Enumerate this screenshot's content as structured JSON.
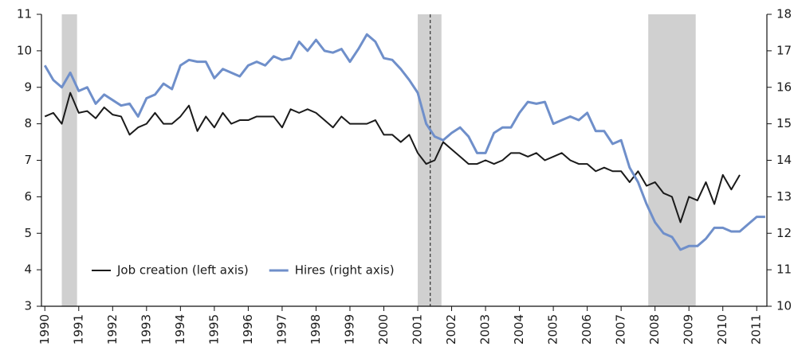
{
  "chart_data": {
    "type": "line",
    "x": [
      1990,
      1990.25,
      1990.5,
      1990.75,
      1991,
      1991.25,
      1991.5,
      1991.75,
      1992,
      1992.25,
      1992.5,
      1992.75,
      1993,
      1993.25,
      1993.5,
      1993.75,
      1994,
      1994.25,
      1994.5,
      1994.75,
      1995,
      1995.25,
      1995.5,
      1995.75,
      1996,
      1996.25,
      1996.5,
      1996.75,
      1997,
      1997.25,
      1997.5,
      1997.75,
      1998,
      1998.25,
      1998.5,
      1998.75,
      1999,
      1999.25,
      1999.5,
      1999.75,
      2000,
      2000.25,
      2000.5,
      2000.75,
      2001,
      2001.25,
      2001.5,
      2001.75,
      2002,
      2002.25,
      2002.5,
      2002.75,
      2003,
      2003.25,
      2003.5,
      2003.75,
      2004,
      2004.25,
      2004.5,
      2004.75,
      2005,
      2005.25,
      2005.5,
      2005.75,
      2006,
      2006.25,
      2006.5,
      2006.75,
      2007,
      2007.25,
      2007.5,
      2007.75,
      2008,
      2008.25,
      2008.5,
      2008.75,
      2009,
      2009.25,
      2009.5,
      2009.75,
      2010,
      2010.25,
      2010.5,
      2010.75,
      2011,
      2011.25
    ],
    "series": [
      {
        "name": "Job creation (left axis)",
        "color": "#1a1a1a",
        "axis": "y",
        "values": [
          8.2,
          8.3,
          8.0,
          8.85,
          8.3,
          8.35,
          8.15,
          8.45,
          8.25,
          8.2,
          7.7,
          7.9,
          8.0,
          8.3,
          8.0,
          8.0,
          8.2,
          8.5,
          7.8,
          8.2,
          7.9,
          8.3,
          8.0,
          8.1,
          8.1,
          8.2,
          8.2,
          8.2,
          7.9,
          8.4,
          8.3,
          8.4,
          8.3,
          8.1,
          7.9,
          8.2,
          8.0,
          8.0,
          8.0,
          8.1,
          7.7,
          7.7,
          7.5,
          7.7,
          7.2,
          6.9,
          7.0,
          7.5,
          7.3,
          7.1,
          6.9,
          6.9,
          7.0,
          6.9,
          7.0,
          7.2,
          7.2,
          7.1,
          7.2,
          7.0,
          7.1,
          7.2,
          7.0,
          6.9,
          6.9,
          6.7,
          6.8,
          6.7,
          6.7,
          6.4,
          6.7,
          6.3,
          6.4,
          6.1,
          6.0,
          5.3,
          6.0,
          5.9,
          6.4,
          5.8,
          6.6,
          6.2,
          6.6,
          null,
          null,
          null
        ]
      },
      {
        "name": "Hires (right axis)",
        "color": "#6f8fca",
        "axis": "y2",
        "values": [
          16.6,
          16.2,
          16.0,
          16.4,
          15.9,
          16.0,
          15.55,
          15.8,
          15.65,
          15.5,
          15.55,
          15.2,
          15.7,
          15.8,
          16.1,
          15.95,
          16.6,
          16.75,
          16.7,
          16.7,
          16.25,
          16.5,
          16.4,
          16.3,
          16.6,
          16.7,
          16.6,
          16.85,
          16.75,
          16.8,
          17.25,
          17.0,
          17.3,
          17.0,
          16.95,
          17.05,
          16.7,
          17.05,
          17.45,
          17.25,
          16.8,
          16.75,
          16.5,
          16.2,
          15.85,
          15.0,
          14.65,
          14.55,
          14.75,
          14.9,
          14.65,
          14.2,
          14.2,
          14.75,
          14.9,
          14.9,
          15.3,
          15.6,
          15.55,
          15.6,
          15.0,
          15.1,
          15.2,
          15.1,
          15.3,
          14.8,
          14.8,
          14.45,
          14.55,
          13.8,
          13.4,
          12.8,
          12.3,
          12.0,
          11.9,
          11.55,
          11.65,
          11.65,
          11.85,
          12.15,
          12.15,
          12.05,
          12.05,
          12.25,
          12.45,
          12.45
        ]
      }
    ],
    "xlim": [
      1989.9,
      2011.3
    ],
    "xticks": [
      1990,
      1991,
      1992,
      1993,
      1994,
      1995,
      1996,
      1997,
      1998,
      1999,
      2000,
      2001,
      2002,
      2003,
      2004,
      2005,
      2006,
      2007,
      2008,
      2009,
      2010,
      2011
    ],
    "ylim": [
      3,
      11
    ],
    "yticks": [
      3,
      4,
      5,
      6,
      7,
      8,
      9,
      10,
      11
    ],
    "y2lim": [
      10,
      18
    ],
    "y2ticks": [
      10,
      11,
      12,
      13,
      14,
      15,
      16,
      17,
      18
    ],
    "shaded_periods": [
      [
        1990.5,
        1990.95
      ],
      [
        2001.0,
        2001.7
      ],
      [
        2007.8,
        2009.2
      ]
    ],
    "shade_color": "#d0d0d0",
    "reference_line": 2001.37,
    "legend": "lower left"
  }
}
